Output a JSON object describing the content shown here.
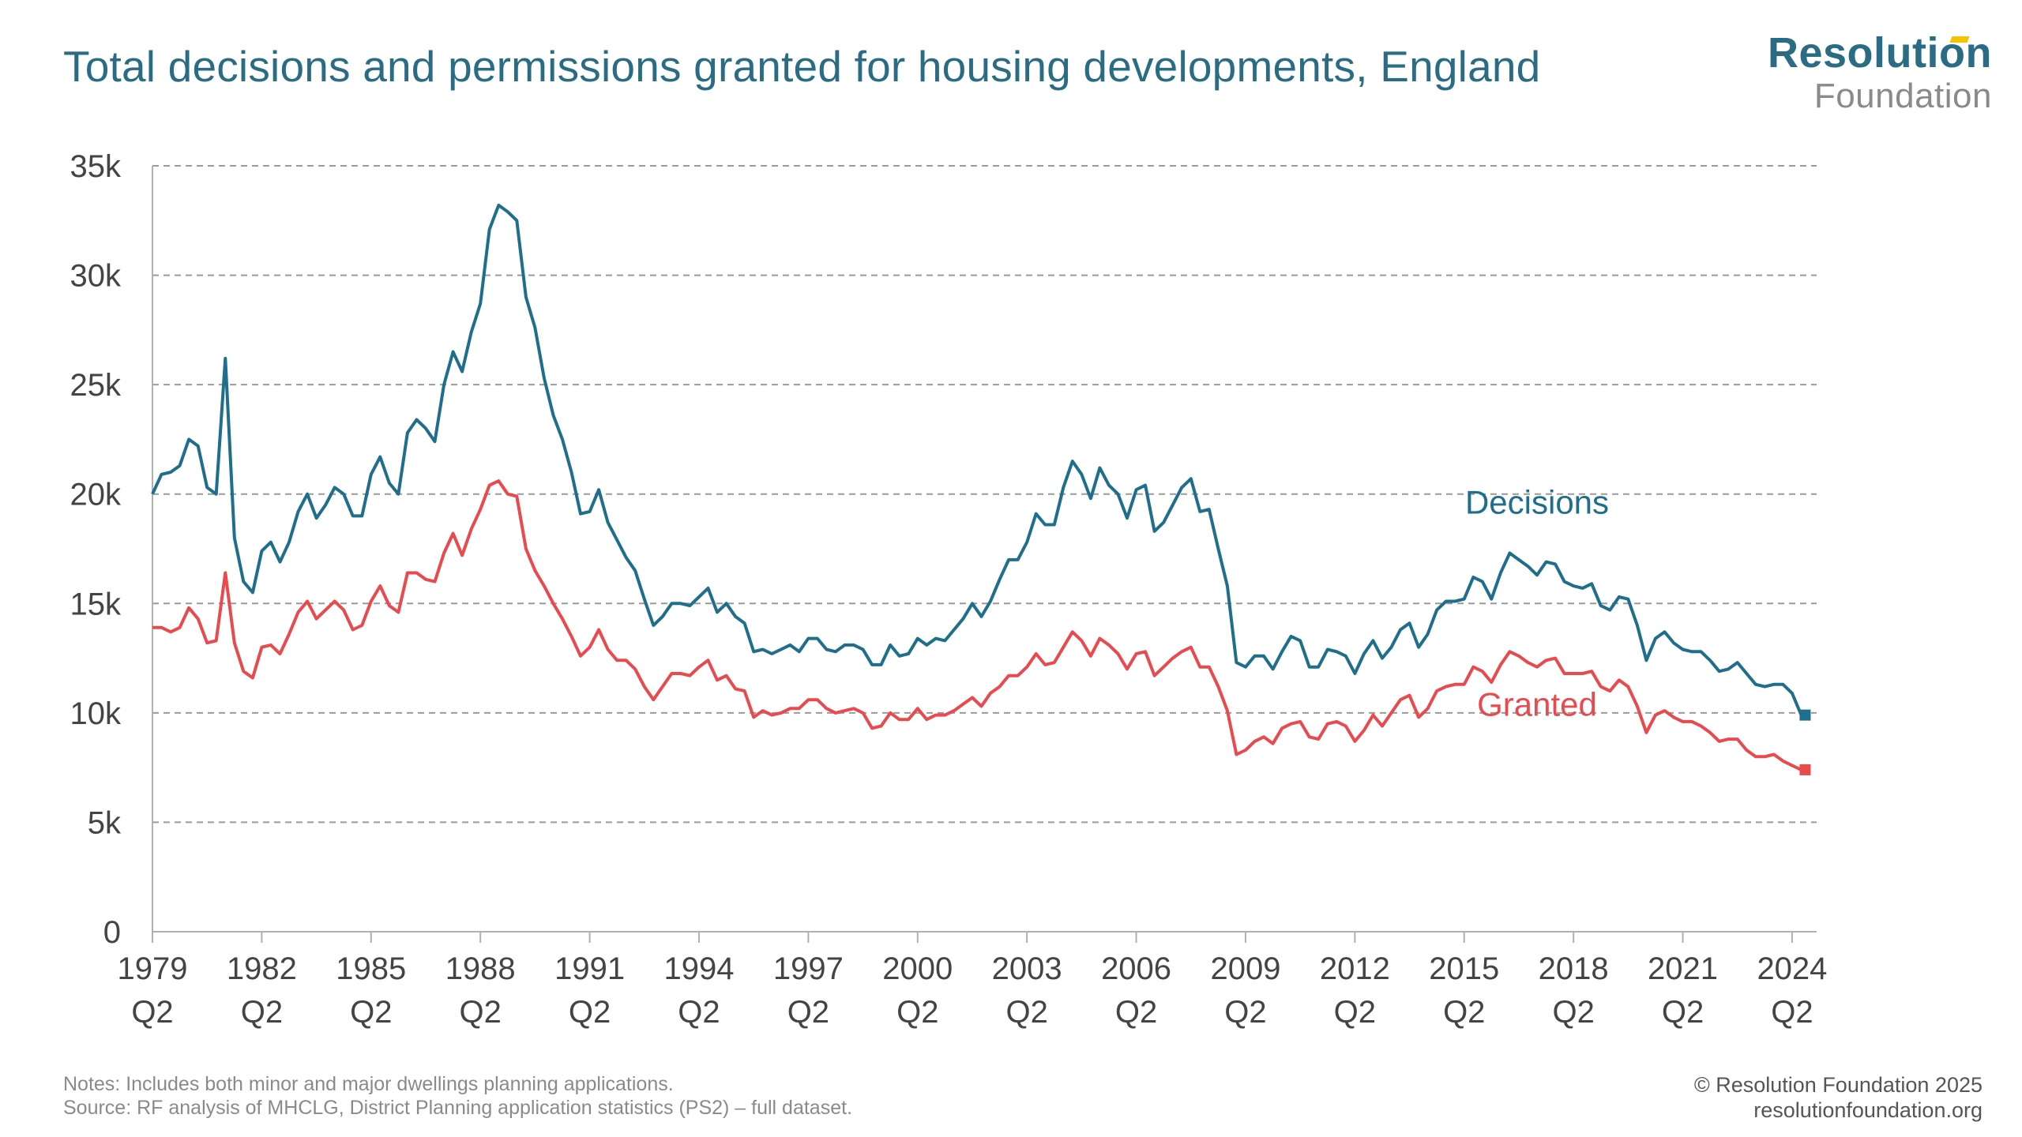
{
  "title": "Total decisions and permissions granted for housing developments, England",
  "logo": {
    "line1": "Resolution",
    "line2": "Foundation",
    "accent_color": "#f2c500"
  },
  "notes": "Notes: Includes both minor and major dwellings planning applications.",
  "source": "Source: RF analysis of MHCLG, District Planning application statistics (PS2) – full dataset.",
  "copyright": "© Resolution Foundation 2025",
  "website": "resolutionfoundation.org",
  "colors": {
    "decisions": "#1f6e8c",
    "granted": "#e84a4e",
    "grid": "#9a9a9a",
    "axis_text": "#444444"
  },
  "chart_data": {
    "type": "line",
    "title": "Total decisions and permissions granted for housing developments, England",
    "xlabel": "",
    "ylabel": "",
    "ylim": [
      0,
      35000
    ],
    "yticks": [
      0,
      5000,
      10000,
      15000,
      20000,
      25000,
      30000,
      35000
    ],
    "ytick_labels": [
      "0",
      "5k",
      "10k",
      "15k",
      "20k",
      "25k",
      "30k",
      "35k"
    ],
    "x_start": "1979 Q2",
    "x_end": "2024 Q4",
    "xtick_labels": [
      "1979 Q2",
      "1982 Q2",
      "1985 Q2",
      "1988 Q2",
      "1991 Q2",
      "1994 Q2",
      "1997 Q2",
      "2000 Q2",
      "2003 Q2",
      "2006 Q2",
      "2009 Q2",
      "2012 Q2",
      "2015 Q2",
      "2018 Q2",
      "2021 Q2",
      "2024 Q2"
    ],
    "grid": true,
    "series": [
      {
        "name": "Decisions",
        "color": "#1f6e8c",
        "label_anchor": "2017 Q2",
        "values": [
          20000,
          20900,
          21000,
          21300,
          22500,
          22200,
          20300,
          20000,
          26200,
          18000,
          16000,
          15500,
          17400,
          17800,
          16900,
          17800,
          19200,
          20000,
          18900,
          19500,
          20300,
          20000,
          19000,
          19000,
          20900,
          21700,
          20500,
          20000,
          22800,
          23400,
          23000,
          22400,
          25000,
          26500,
          25600,
          27400,
          28700,
          32100,
          33200,
          32900,
          32500,
          29000,
          27600,
          25300,
          23600,
          22500,
          21000,
          19100,
          19200,
          20200,
          18700,
          17900,
          17100,
          16500,
          15200,
          14000,
          14400,
          15000,
          15000,
          14900,
          15300,
          15700,
          14600,
          15000,
          14400,
          14100,
          12800,
          12900,
          12700,
          12900,
          13100,
          12800,
          13400,
          13400,
          12900,
          12800,
          13100,
          13100,
          12900,
          12200,
          12200,
          13100,
          12600,
          12700,
          13400,
          13100,
          13400,
          13300,
          13800,
          14300,
          15000,
          14400,
          15100,
          16100,
          17000,
          17000,
          17800,
          19100,
          18600,
          18600,
          20300,
          21500,
          20900,
          19800,
          21200,
          20400,
          20000,
          18900,
          20200,
          20400,
          18300,
          18700,
          19500,
          20300,
          20700,
          19200,
          19300,
          17500,
          15800,
          12300,
          12100,
          12600,
          12600,
          12000,
          12800,
          13500,
          13300,
          12100,
          12100,
          12900,
          12800,
          12600,
          11800,
          12700,
          13300,
          12500,
          13000,
          13800,
          14100,
          13000,
          13600,
          14700,
          15100,
          15100,
          15200,
          16200,
          16000,
          15200,
          16400,
          17300,
          17000,
          16700,
          16300,
          16900,
          16800,
          16000,
          15800,
          15700,
          15900,
          14900,
          14700,
          15300,
          15200,
          14000,
          12400,
          13400,
          13700,
          13200,
          12900,
          12800,
          12800,
          12400,
          11900,
          12000,
          12300,
          11800,
          11300,
          11200,
          11300,
          11300,
          10900,
          9900
        ]
      },
      {
        "name": "Granted",
        "color": "#e84a4e",
        "label_anchor": "2017 Q2",
        "values": [
          13900,
          13900,
          13700,
          13900,
          14800,
          14300,
          13200,
          13300,
          16400,
          13200,
          11900,
          11600,
          13000,
          13100,
          12700,
          13600,
          14600,
          15100,
          14300,
          14700,
          15100,
          14700,
          13800,
          14000,
          15100,
          15800,
          14900,
          14600,
          16400,
          16400,
          16100,
          16000,
          17300,
          18200,
          17200,
          18400,
          19300,
          20400,
          20600,
          20000,
          19900,
          17500,
          16500,
          15800,
          15000,
          14300,
          13500,
          12600,
          13000,
          13800,
          12900,
          12400,
          12400,
          12000,
          11200,
          10600,
          11200,
          11800,
          11800,
          11700,
          12100,
          12400,
          11500,
          11700,
          11100,
          11000,
          9800,
          10100,
          9900,
          10000,
          10200,
          10200,
          10600,
          10600,
          10200,
          10000,
          10100,
          10200,
          10000,
          9300,
          9400,
          10000,
          9700,
          9700,
          10200,
          9700,
          9900,
          9900,
          10100,
          10400,
          10700,
          10300,
          10900,
          11200,
          11700,
          11700,
          12100,
          12700,
          12200,
          12300,
          13000,
          13700,
          13300,
          12600,
          13400,
          13100,
          12700,
          12000,
          12700,
          12800,
          11700,
          12100,
          12500,
          12800,
          13000,
          12100,
          12100,
          11200,
          10100,
          8100,
          8300,
          8700,
          8900,
          8600,
          9300,
          9500,
          9600,
          8900,
          8800,
          9500,
          9600,
          9400,
          8700,
          9200,
          9900,
          9400,
          10000,
          10600,
          10800,
          9800,
          10200,
          11000,
          11200,
          11300,
          11300,
          12100,
          11900,
          11400,
          12200,
          12800,
          12600,
          12300,
          12100,
          12400,
          12500,
          11800,
          11800,
          11800,
          11900,
          11200,
          11000,
          11500,
          11200,
          10300,
          9100,
          9900,
          10100,
          9800,
          9600,
          9600,
          9400,
          9100,
          8700,
          8800,
          8800,
          8300,
          8000,
          8000,
          8100,
          7800,
          7600,
          7400
        ]
      }
    ]
  }
}
